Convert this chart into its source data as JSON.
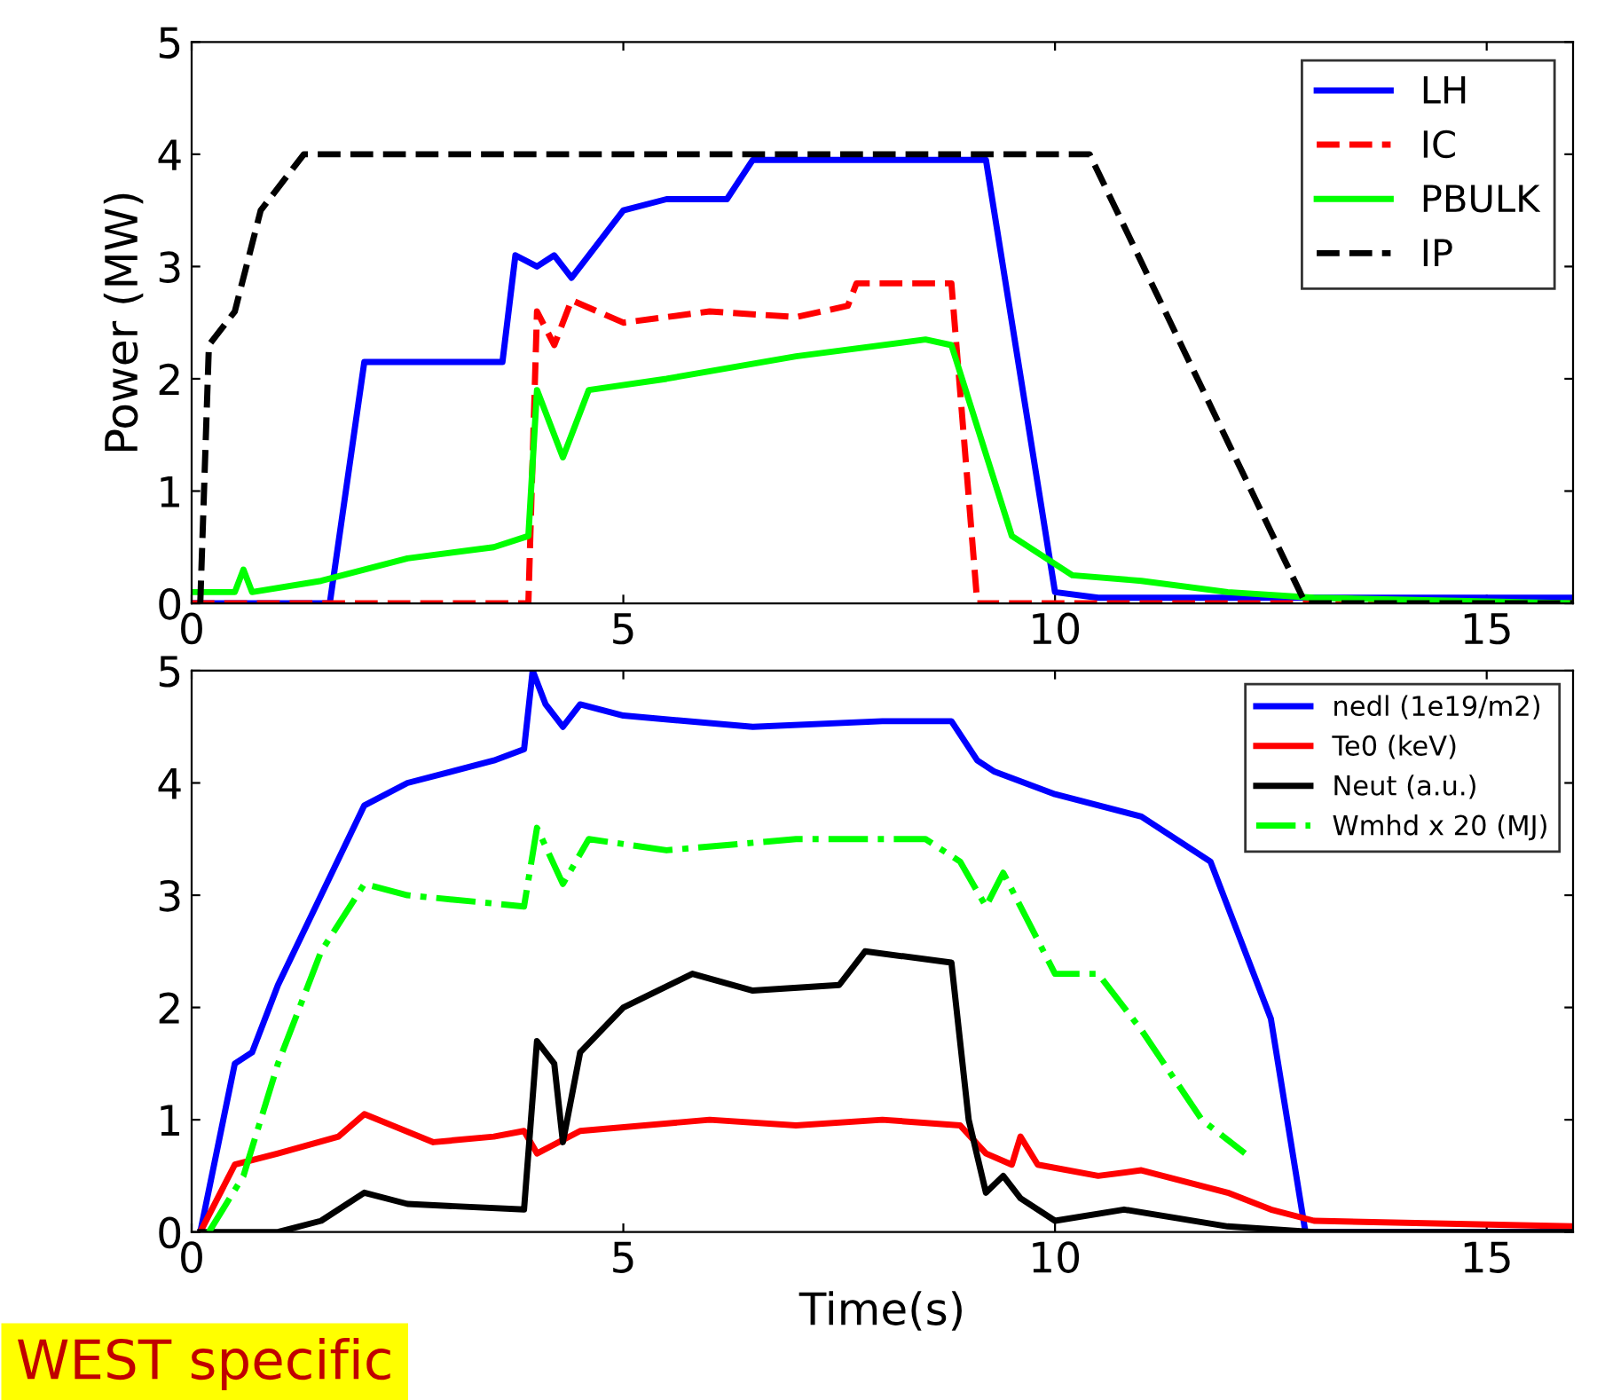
{
  "chart_data": [
    {
      "type": "line",
      "ylabel": "Power (MW)",
      "xlim": [
        0,
        16
      ],
      "ylim": [
        0,
        5
      ],
      "xticks": [
        0,
        5,
        10,
        15
      ],
      "yticks": [
        0,
        1,
        2,
        3,
        4,
        5
      ],
      "grid": false,
      "legend": "top right",
      "series": [
        {
          "name": "LH",
          "color": "#0000ff",
          "line_style": "solid",
          "x": [
            0,
            1.6,
            2.0,
            3.6,
            3.75,
            4.0,
            4.2,
            4.4,
            4.6,
            5.0,
            5.5,
            6.2,
            6.5,
            9.2,
            10.0,
            10.5,
            16
          ],
          "values": [
            0,
            0,
            2.15,
            2.15,
            3.1,
            3.0,
            3.1,
            2.9,
            3.1,
            3.5,
            3.6,
            3.6,
            3.95,
            3.95,
            0.1,
            0.05,
            0.05
          ]
        },
        {
          "name": "IC",
          "color": "#ff0000",
          "line_style": "dashed",
          "x": [
            0,
            3.9,
            4.0,
            4.2,
            4.4,
            5.0,
            6.0,
            7.0,
            7.6,
            7.7,
            8.8,
            9.1,
            16
          ],
          "values": [
            0,
            0,
            2.6,
            2.3,
            2.7,
            2.5,
            2.6,
            2.55,
            2.65,
            2.85,
            2.85,
            0,
            0
          ]
        },
        {
          "name": "PBULK",
          "color": "#00ff00",
          "line_style": "solid",
          "x": [
            0,
            0.5,
            0.6,
            0.7,
            1.5,
            2.5,
            3.5,
            3.9,
            4.0,
            4.3,
            4.6,
            5.5,
            7.0,
            8.5,
            8.8,
            9.5,
            10.2,
            11,
            12,
            13,
            16
          ],
          "values": [
            0.1,
            0.1,
            0.3,
            0.1,
            0.2,
            0.4,
            0.5,
            0.6,
            1.9,
            1.3,
            1.9,
            2.0,
            2.2,
            2.35,
            2.3,
            0.6,
            0.25,
            0.2,
            0.1,
            0.05,
            0
          ]
        },
        {
          "name": "IP",
          "color": "#000000",
          "line_style": "dashed",
          "x": [
            0.1,
            0.2,
            0.5,
            0.8,
            1.3,
            10.4,
            12.9,
            16
          ],
          "values": [
            0,
            2.3,
            2.6,
            3.5,
            4.0,
            4.0,
            0,
            0
          ]
        }
      ]
    },
    {
      "type": "line",
      "xlabel": "Time(s)",
      "xlim": [
        0,
        16
      ],
      "ylim": [
        0,
        5
      ],
      "xticks": [
        0,
        5,
        10,
        15
      ],
      "yticks": [
        0,
        1,
        2,
        3,
        4,
        5
      ],
      "grid": false,
      "legend": "top right",
      "annotations": [
        "WEST specific"
      ],
      "series": [
        {
          "name": "nedl (1e19/m2)",
          "color": "#0000ff",
          "line_style": "solid",
          "x": [
            0.1,
            0.5,
            0.7,
            1.0,
            1.5,
            2.0,
            2.5,
            3.5,
            3.85,
            3.95,
            4.1,
            4.3,
            4.5,
            5.0,
            6.5,
            8.0,
            8.8,
            9.1,
            9.3,
            10.0,
            11.0,
            11.8,
            12.5,
            12.9,
            16
          ],
          "values": [
            0,
            1.5,
            1.6,
            2.2,
            3.0,
            3.8,
            4.0,
            4.2,
            4.3,
            5.0,
            4.7,
            4.5,
            4.7,
            4.6,
            4.5,
            4.55,
            4.55,
            4.2,
            4.1,
            3.9,
            3.7,
            3.3,
            1.9,
            0,
            0
          ]
        },
        {
          "name": "Te0 (keV)",
          "color": "#ff0000",
          "line_style": "solid",
          "x": [
            0.1,
            0.5,
            1.0,
            1.7,
            2.0,
            2.8,
            3.5,
            3.85,
            4.0,
            4.5,
            6.0,
            7.0,
            8.0,
            8.9,
            9.2,
            9.5,
            9.6,
            9.8,
            10.5,
            11.0,
            12.0,
            12.5,
            13.0,
            16
          ],
          "values": [
            0,
            0.6,
            0.7,
            0.85,
            1.05,
            0.8,
            0.85,
            0.9,
            0.7,
            0.9,
            1.0,
            0.95,
            1.0,
            0.95,
            0.7,
            0.6,
            0.85,
            0.6,
            0.5,
            0.55,
            0.35,
            0.2,
            0.1,
            0.05
          ]
        },
        {
          "name": "Neut (a.u.)",
          "color": "#000000",
          "line_style": "solid",
          "x": [
            0.1,
            1.0,
            1.5,
            2.0,
            2.5,
            3.85,
            4.0,
            4.2,
            4.3,
            4.5,
            5.0,
            5.8,
            6.5,
            7.5,
            7.8,
            8.8,
            9.0,
            9.2,
            9.4,
            9.6,
            10.0,
            10.8,
            12.0,
            13.0,
            16
          ],
          "values": [
            0,
            0,
            0.1,
            0.35,
            0.25,
            0.2,
            1.7,
            1.5,
            0.8,
            1.6,
            2.0,
            2.3,
            2.15,
            2.2,
            2.5,
            2.4,
            1.0,
            0.35,
            0.5,
            0.3,
            0.1,
            0.2,
            0.05,
            0,
            0
          ]
        },
        {
          "name": "Wmhd x 20 (MJ)",
          "color": "#00ff00",
          "line_style": "dashdot",
          "x": [
            0.2,
            0.6,
            1.0,
            1.5,
            2.0,
            2.5,
            3.85,
            4.0,
            4.3,
            4.6,
            5.5,
            7.0,
            8.5,
            8.9,
            9.2,
            9.4,
            10.0,
            10.5,
            11.0,
            11.7,
            12.2
          ],
          "values": [
            0,
            0.5,
            1.5,
            2.5,
            3.1,
            3.0,
            2.9,
            3.6,
            3.1,
            3.5,
            3.4,
            3.5,
            3.5,
            3.3,
            2.9,
            3.2,
            2.3,
            2.3,
            1.8,
            1.0,
            0.7
          ]
        }
      ]
    }
  ]
}
